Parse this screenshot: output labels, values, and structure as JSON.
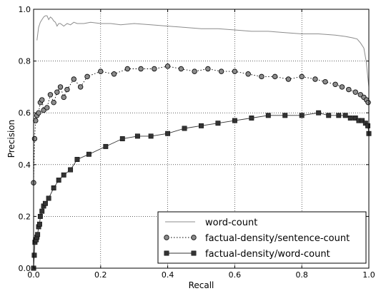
{
  "chart_data": {
    "type": "line",
    "title": "",
    "xlabel": "Recall",
    "ylabel": "Precision",
    "xlim": [
      0.0,
      1.0
    ],
    "ylim": [
      0.0,
      1.0
    ],
    "xticks": [
      "0.0",
      "0.2",
      "0.4",
      "0.6",
      "0.8",
      "1.0"
    ],
    "yticks": [
      "0.0",
      "0.2",
      "0.4",
      "0.6",
      "0.8",
      "1.0"
    ],
    "grid": true,
    "grid_style": "dotted",
    "legend_position": "bottom-right",
    "series": [
      {
        "name": "word-count",
        "color": "#8c8c8c",
        "line_style": "solid",
        "marker": "none",
        "x": [
          0.01,
          0.015,
          0.02,
          0.025,
          0.03,
          0.035,
          0.04,
          0.045,
          0.05,
          0.055,
          0.06,
          0.065,
          0.07,
          0.075,
          0.08,
          0.09,
          0.1,
          0.11,
          0.12,
          0.13,
          0.15,
          0.17,
          0.2,
          0.23,
          0.26,
          0.3,
          0.35,
          0.4,
          0.45,
          0.5,
          0.55,
          0.6,
          0.65,
          0.7,
          0.75,
          0.8,
          0.85,
          0.9,
          0.93,
          0.95,
          0.965,
          0.975,
          0.985,
          0.992,
          1.0
        ],
        "y": [
          0.88,
          0.93,
          0.95,
          0.96,
          0.97,
          0.975,
          0.975,
          0.96,
          0.97,
          0.965,
          0.955,
          0.95,
          0.935,
          0.945,
          0.945,
          0.935,
          0.945,
          0.94,
          0.95,
          0.945,
          0.945,
          0.95,
          0.945,
          0.945,
          0.94,
          0.945,
          0.94,
          0.935,
          0.93,
          0.925,
          0.925,
          0.92,
          0.915,
          0.915,
          0.91,
          0.905,
          0.905,
          0.9,
          0.895,
          0.89,
          0.885,
          0.87,
          0.85,
          0.8,
          0.7
        ]
      },
      {
        "name": "factual-density/sentence-count",
        "color": "#000000",
        "marker_fill": "#8c8c8c",
        "line_style": "dotted",
        "marker": "circle",
        "x": [
          0.0,
          0.003,
          0.006,
          0.01,
          0.015,
          0.02,
          0.025,
          0.03,
          0.04,
          0.05,
          0.06,
          0.07,
          0.08,
          0.09,
          0.1,
          0.12,
          0.14,
          0.16,
          0.2,
          0.24,
          0.28,
          0.32,
          0.36,
          0.4,
          0.44,
          0.48,
          0.52,
          0.56,
          0.6,
          0.64,
          0.68,
          0.72,
          0.76,
          0.8,
          0.84,
          0.87,
          0.9,
          0.92,
          0.94,
          0.96,
          0.975,
          0.985,
          0.993,
          0.998
        ],
        "y": [
          0.33,
          0.5,
          0.57,
          0.59,
          0.6,
          0.64,
          0.65,
          0.61,
          0.62,
          0.67,
          0.64,
          0.68,
          0.7,
          0.66,
          0.69,
          0.73,
          0.7,
          0.74,
          0.76,
          0.75,
          0.77,
          0.77,
          0.77,
          0.78,
          0.77,
          0.76,
          0.77,
          0.76,
          0.76,
          0.75,
          0.74,
          0.74,
          0.73,
          0.74,
          0.73,
          0.72,
          0.71,
          0.7,
          0.69,
          0.68,
          0.67,
          0.66,
          0.65,
          0.64
        ]
      },
      {
        "name": "factual-density/word-count",
        "color": "#333333",
        "line_style": "solid",
        "marker": "square",
        "x": [
          0.0,
          0.002,
          0.004,
          0.006,
          0.008,
          0.01,
          0.012,
          0.015,
          0.018,
          0.02,
          0.025,
          0.03,
          0.035,
          0.045,
          0.06,
          0.075,
          0.09,
          0.11,
          0.13,
          0.165,
          0.215,
          0.265,
          0.31,
          0.35,
          0.4,
          0.45,
          0.5,
          0.55,
          0.6,
          0.65,
          0.7,
          0.75,
          0.8,
          0.85,
          0.88,
          0.91,
          0.93,
          0.945,
          0.96,
          0.97,
          0.98,
          0.99,
          0.997,
          1.0
        ],
        "y": [
          0.0,
          0.05,
          0.1,
          0.11,
          0.11,
          0.12,
          0.13,
          0.16,
          0.17,
          0.2,
          0.22,
          0.24,
          0.25,
          0.27,
          0.31,
          0.34,
          0.36,
          0.38,
          0.42,
          0.44,
          0.47,
          0.5,
          0.51,
          0.51,
          0.52,
          0.54,
          0.55,
          0.56,
          0.57,
          0.58,
          0.59,
          0.59,
          0.59,
          0.6,
          0.59,
          0.59,
          0.59,
          0.58,
          0.58,
          0.57,
          0.57,
          0.56,
          0.55,
          0.52
        ]
      }
    ]
  }
}
